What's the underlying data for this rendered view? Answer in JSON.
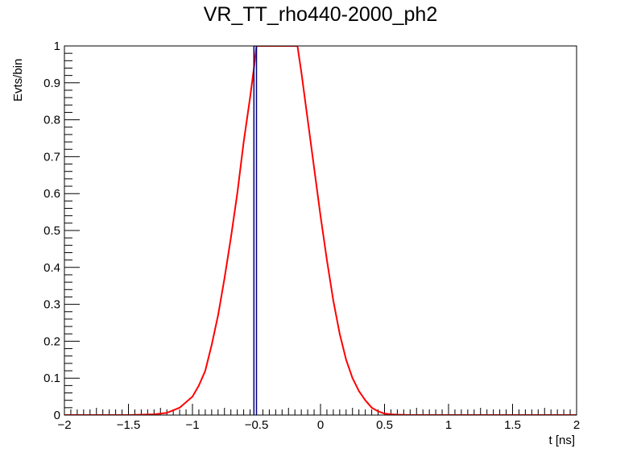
{
  "chart_data": {
    "type": "line",
    "title": "VR_TT_rho440-2000_ph2",
    "xlabel": "t [ns]",
    "ylabel": "Evts/bin",
    "xlim": [
      -2,
      2
    ],
    "ylim": [
      0,
      1
    ],
    "x_ticks": [
      -2,
      -1.5,
      -1,
      -0.5,
      0,
      0.5,
      1,
      1.5,
      2
    ],
    "x_tick_labels": [
      "−2",
      "−1.5",
      "−1",
      "−0.5",
      "0",
      "0.5",
      "1",
      "1.5",
      "2"
    ],
    "y_ticks": [
      0,
      0.1,
      0.2,
      0.3,
      0.4,
      0.5,
      0.6,
      0.7,
      0.8,
      0.9,
      1
    ],
    "y_tick_labels": [
      "0",
      "0.1",
      "0.2",
      "0.3",
      "0.4",
      "0.5",
      "0.6",
      "0.7",
      "0.8",
      "0.9",
      "1"
    ],
    "grid": false,
    "legend": false,
    "series": [
      {
        "color": "#ff0000",
        "x": [
          -2,
          -1.5,
          -1.3,
          -1.2,
          -1.1,
          -1.0,
          -0.95,
          -0.9,
          -0.85,
          -0.8,
          -0.75,
          -0.7,
          -0.65,
          -0.6,
          -0.55,
          -0.52,
          -0.5,
          -0.48,
          -0.18,
          -0.15,
          -0.1,
          -0.05,
          0.0,
          0.05,
          0.1,
          0.15,
          0.2,
          0.25,
          0.3,
          0.35,
          0.4,
          0.45,
          0.5,
          0.55,
          0.6,
          0.7,
          1.0,
          2.0
        ],
        "y": [
          0,
          0,
          0.002,
          0.006,
          0.02,
          0.05,
          0.08,
          0.12,
          0.19,
          0.27,
          0.37,
          0.48,
          0.6,
          0.74,
          0.86,
          0.94,
          1.0,
          1.0,
          1.0,
          0.93,
          0.8,
          0.67,
          0.54,
          0.42,
          0.31,
          0.22,
          0.15,
          0.1,
          0.065,
          0.04,
          0.02,
          0.01,
          0.004,
          0.002,
          0.001,
          0,
          0,
          0
        ]
      },
      {
        "color": "#000080",
        "style": "histogram",
        "bins": [
          {
            "lo": -0.52,
            "hi": -0.5,
            "value": 1
          }
        ]
      }
    ]
  }
}
